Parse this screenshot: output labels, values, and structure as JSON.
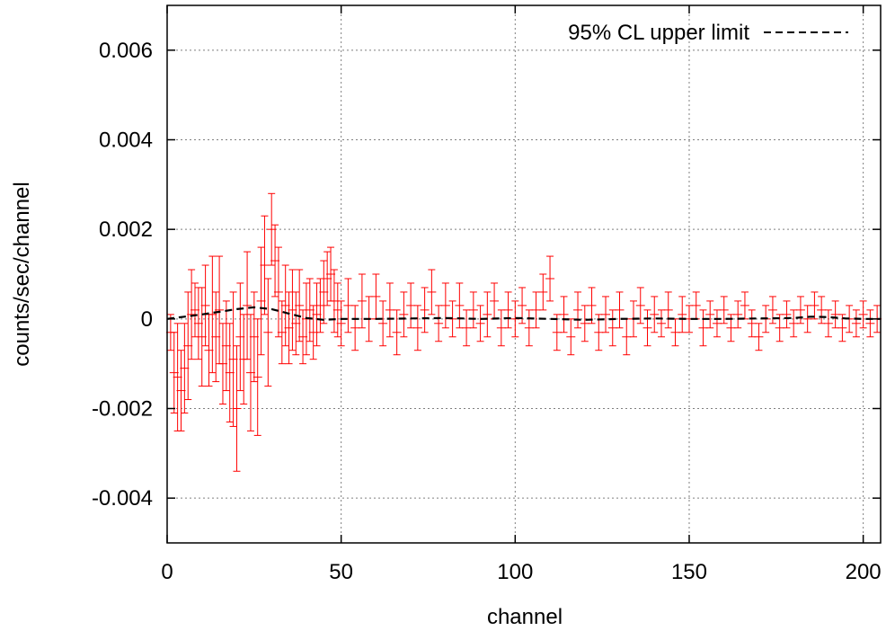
{
  "chart_data": {
    "type": "scatter",
    "xlabel": "channel",
    "ylabel": "counts/sec/channel",
    "xlim": [
      0,
      205
    ],
    "ylim": [
      -0.005,
      0.007
    ],
    "xticks": [
      0,
      50,
      100,
      150,
      200
    ],
    "xtick_labels": [
      "0",
      "50",
      "100",
      "150",
      "200"
    ],
    "yticks": [
      -0.004,
      -0.002,
      0,
      0.002,
      0.004,
      0.006
    ],
    "ytick_labels": [
      "-0.004",
      "-0.002",
      "0",
      "0.002",
      "0.004",
      "0.006"
    ],
    "grid": true,
    "legend_position": "top-right",
    "legend_entries": [
      "95% CL upper limit"
    ],
    "colors": {
      "data": "#ff0000",
      "limit": "#000000",
      "grid": "#7f7f7f"
    },
    "series": [
      {
        "type": "errorbar",
        "style": "red crosses with vertical error bars",
        "points": [
          {
            "x": 1,
            "y": -0.0003,
            "err": 0.0004
          },
          {
            "x": 2,
            "y": -0.0012,
            "err": 0.0009
          },
          {
            "x": 3,
            "y": -0.0013,
            "err": 0.0012
          },
          {
            "x": 4,
            "y": -0.0016,
            "err": 0.0009
          },
          {
            "x": 5,
            "y": -0.0011,
            "err": 0.001
          },
          {
            "x": 6,
            "y": -0.0006,
            "err": 0.0012
          },
          {
            "x": 7,
            "y": 0.0001,
            "err": 0.001
          },
          {
            "x": 8,
            "y": 0.0002,
            "err": 0.0006
          },
          {
            "x": 9,
            "y": -0.0001,
            "err": 0.0008
          },
          {
            "x": 10,
            "y": -0.0004,
            "err": 0.0011
          },
          {
            "x": 11,
            "y": 0.0003,
            "err": 0.0009
          },
          {
            "x": 12,
            "y": -0.0007,
            "err": 0.0008
          },
          {
            "x": 13,
            "y": 0.0001,
            "err": 0.0013
          },
          {
            "x": 14,
            "y": -0.0004,
            "err": 0.001
          },
          {
            "x": 15,
            "y": 0.0002,
            "err": 0.0012
          },
          {
            "x": 16,
            "y": -0.001,
            "err": 0.0009
          },
          {
            "x": 17,
            "y": -0.0006,
            "err": 0.001
          },
          {
            "x": 18,
            "y": -0.0012,
            "err": 0.0011
          },
          {
            "x": 19,
            "y": -0.0009,
            "err": 0.0015
          },
          {
            "x": 20,
            "y": -0.002,
            "err": 0.0014
          },
          {
            "x": 21,
            "y": -0.0004,
            "err": 0.0012
          },
          {
            "x": 22,
            "y": -0.0009,
            "err": 0.001
          },
          {
            "x": 23,
            "y": 0.0003,
            "err": 0.0012
          },
          {
            "x": 24,
            "y": -0.0012,
            "err": 0.0013
          },
          {
            "x": 25,
            "y": -0.0004,
            "err": 0.001
          },
          {
            "x": 26,
            "y": -0.0013,
            "err": 0.0013
          },
          {
            "x": 27,
            "y": 0.0004,
            "err": 0.0012
          },
          {
            "x": 28,
            "y": 0.0012,
            "err": 0.0011
          },
          {
            "x": 29,
            "y": -0.0003,
            "err": 0.0012
          },
          {
            "x": 30,
            "y": 0.002,
            "err": 0.0008
          },
          {
            "x": 31,
            "y": 0.0013,
            "err": 0.0008
          },
          {
            "x": 32,
            "y": 0.0006,
            "err": 0.001
          },
          {
            "x": 33,
            "y": -0.0003,
            "err": 0.0007
          },
          {
            "x": 34,
            "y": 0.0003,
            "err": 0.0009
          },
          {
            "x": 35,
            "y": -0.0002,
            "err": 0.0008
          },
          {
            "x": 36,
            "y": 0.0002,
            "err": 0.0009
          },
          {
            "x": 37,
            "y": -0.0001,
            "err": 0.0007
          },
          {
            "x": 38,
            "y": 0.0003,
            "err": 0.0008
          },
          {
            "x": 39,
            "y": -0.0004,
            "err": 0.0006
          },
          {
            "x": 40,
            "y": 0.0,
            "err": 0.0008
          },
          {
            "x": 41,
            "y": 0.0002,
            "err": 0.0007
          },
          {
            "x": 42,
            "y": -0.0003,
            "err": 0.0006
          },
          {
            "x": 43,
            "y": 0.0001,
            "err": 0.0007
          },
          {
            "x": 44,
            "y": 0.0003,
            "err": 0.0006
          },
          {
            "x": 45,
            "y": 0.0006,
            "err": 0.0007
          },
          {
            "x": 46,
            "y": 0.0009,
            "err": 0.0006
          },
          {
            "x": 47,
            "y": 0.001,
            "err": 0.0006
          },
          {
            "x": 48,
            "y": 0.0004,
            "err": 0.0007
          },
          {
            "x": 49,
            "y": 0.0002,
            "err": 0.0006
          },
          {
            "x": 50,
            "y": -0.0001,
            "err": 0.0005
          },
          {
            "x": 52,
            "y": 0.0003,
            "err": 0.0006
          },
          {
            "x": 54,
            "y": -0.0002,
            "err": 0.0005
          },
          {
            "x": 56,
            "y": 0.0004,
            "err": 0.0006
          },
          {
            "x": 58,
            "y": 0.0,
            "err": 0.0005
          },
          {
            "x": 60,
            "y": 0.0005,
            "err": 0.0005
          },
          {
            "x": 62,
            "y": -0.0001,
            "err": 0.0005
          },
          {
            "x": 64,
            "y": 0.0002,
            "err": 0.0006
          },
          {
            "x": 66,
            "y": -0.0003,
            "err": 0.0005
          },
          {
            "x": 68,
            "y": 0.0001,
            "err": 0.0005
          },
          {
            "x": 70,
            "y": 0.0003,
            "err": 0.0005
          },
          {
            "x": 72,
            "y": -0.0002,
            "err": 0.0005
          },
          {
            "x": 74,
            "y": 0.0002,
            "err": 0.0005
          },
          {
            "x": 76,
            "y": 0.0006,
            "err": 0.0005
          },
          {
            "x": 78,
            "y": -0.0001,
            "err": 0.0004
          },
          {
            "x": 80,
            "y": 0.0003,
            "err": 0.0005
          },
          {
            "x": 82,
            "y": 0.0,
            "err": 0.0004
          },
          {
            "x": 84,
            "y": 0.0003,
            "err": 0.0005
          },
          {
            "x": 86,
            "y": -0.0002,
            "err": 0.0004
          },
          {
            "x": 88,
            "y": 0.0002,
            "err": 0.0004
          },
          {
            "x": 90,
            "y": -0.0001,
            "err": 0.0004
          },
          {
            "x": 92,
            "y": 0.0001,
            "err": 0.0005
          },
          {
            "x": 94,
            "y": 0.0004,
            "err": 0.0004
          },
          {
            "x": 96,
            "y": -0.0002,
            "err": 0.0004
          },
          {
            "x": 98,
            "y": 0.0002,
            "err": 0.0004
          },
          {
            "x": 100,
            "y": 0.0,
            "err": 0.0004
          },
          {
            "x": 102,
            "y": 0.0003,
            "err": 0.0004
          },
          {
            "x": 104,
            "y": -0.0002,
            "err": 0.0004
          },
          {
            "x": 106,
            "y": 0.0002,
            "err": 0.0004
          },
          {
            "x": 108,
            "y": 0.0006,
            "err": 0.0004
          },
          {
            "x": 110,
            "y": 0.0009,
            "err": 0.0005
          },
          {
            "x": 112,
            "y": -0.0003,
            "err": 0.0004
          },
          {
            "x": 114,
            "y": 0.0001,
            "err": 0.0004
          },
          {
            "x": 116,
            "y": -0.0004,
            "err": 0.0004
          },
          {
            "x": 118,
            "y": 0.0002,
            "err": 0.0004
          },
          {
            "x": 120,
            "y": -0.0001,
            "err": 0.0004
          },
          {
            "x": 122,
            "y": 0.0003,
            "err": 0.0004
          },
          {
            "x": 124,
            "y": -0.0003,
            "err": 0.0004
          },
          {
            "x": 126,
            "y": 0.0001,
            "err": 0.0004
          },
          {
            "x": 128,
            "y": -0.0002,
            "err": 0.0004
          },
          {
            "x": 130,
            "y": 0.0002,
            "err": 0.0004
          },
          {
            "x": 132,
            "y": -0.0004,
            "err": 0.0004
          },
          {
            "x": 134,
            "y": 0.0,
            "err": 0.0004
          },
          {
            "x": 136,
            "y": 0.0003,
            "err": 0.0004
          },
          {
            "x": 138,
            "y": -0.0002,
            "err": 0.0004
          },
          {
            "x": 140,
            "y": 0.0001,
            "err": 0.0004
          },
          {
            "x": 142,
            "y": -0.0001,
            "err": 0.0003
          },
          {
            "x": 144,
            "y": 0.0002,
            "err": 0.0004
          },
          {
            "x": 146,
            "y": -0.0003,
            "err": 0.0003
          },
          {
            "x": 148,
            "y": 0.0001,
            "err": 0.0004
          },
          {
            "x": 150,
            "y": 0.0,
            "err": 0.0003
          },
          {
            "x": 152,
            "y": 0.0003,
            "err": 0.0003
          },
          {
            "x": 154,
            "y": -0.0002,
            "err": 0.0004
          },
          {
            "x": 156,
            "y": 0.0001,
            "err": 0.0003
          },
          {
            "x": 158,
            "y": -0.0001,
            "err": 0.0003
          },
          {
            "x": 160,
            "y": 0.0002,
            "err": 0.0003
          },
          {
            "x": 162,
            "y": -0.0002,
            "err": 0.0003
          },
          {
            "x": 164,
            "y": 0.0001,
            "err": 0.0003
          },
          {
            "x": 166,
            "y": 0.0003,
            "err": 0.0003
          },
          {
            "x": 168,
            "y": -0.0001,
            "err": 0.0003
          },
          {
            "x": 170,
            "y": -0.0004,
            "err": 0.0003
          },
          {
            "x": 172,
            "y": 0.0,
            "err": 0.0003
          },
          {
            "x": 174,
            "y": 0.0002,
            "err": 0.0003
          },
          {
            "x": 176,
            "y": -0.0002,
            "err": 0.0003
          },
          {
            "x": 178,
            "y": 0.0001,
            "err": 0.0003
          },
          {
            "x": 180,
            "y": -0.0001,
            "err": 0.0003
          },
          {
            "x": 182,
            "y": 0.0002,
            "err": 0.0003
          },
          {
            "x": 184,
            "y": 0.0,
            "err": 0.0003
          },
          {
            "x": 186,
            "y": 0.0003,
            "err": 0.0003
          },
          {
            "x": 188,
            "y": 0.0002,
            "err": 0.0003
          },
          {
            "x": 190,
            "y": -0.0001,
            "err": 0.0003
          },
          {
            "x": 192,
            "y": 0.0001,
            "err": 0.0003
          },
          {
            "x": 194,
            "y": -0.0002,
            "err": 0.0003
          },
          {
            "x": 196,
            "y": 0.0,
            "err": 0.0003
          },
          {
            "x": 198,
            "y": -0.0001,
            "err": 0.0003
          },
          {
            "x": 200,
            "y": 0.0001,
            "err": 0.0003
          },
          {
            "x": 202,
            "y": -0.0001,
            "err": 0.0003
          },
          {
            "x": 204,
            "y": 0.0,
            "err": 0.0003
          }
        ]
      },
      {
        "name": "95% CL upper limit",
        "type": "line",
        "style": "black dashed",
        "x": [
          0,
          5,
          10,
          15,
          20,
          25,
          30,
          35,
          40,
          45,
          50,
          60,
          70,
          80,
          90,
          100,
          110,
          120,
          130,
          140,
          150,
          160,
          170,
          180,
          185,
          190,
          195,
          200,
          205
        ],
        "y": [
          0.0,
          5e-05,
          0.0001,
          0.00016,
          0.00022,
          0.00026,
          0.00022,
          0.00012,
          2e-05,
          -2e-05,
          0.0,
          0.0,
          1e-05,
          2e-05,
          0.0,
          2e-05,
          0.0,
          -2e-05,
          0.0,
          1e-05,
          0.0,
          0.0,
          1e-05,
          2e-05,
          5e-05,
          4e-05,
          1e-05,
          0.0,
          0.0
        ]
      }
    ]
  }
}
